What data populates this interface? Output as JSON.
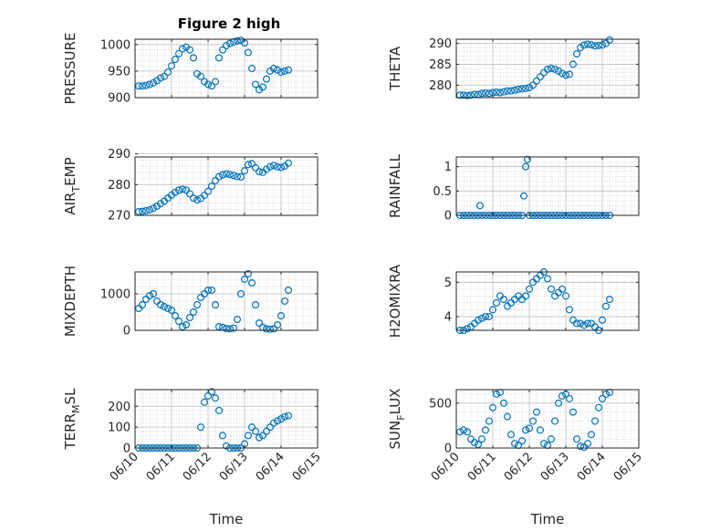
{
  "title": "Figure 2 high",
  "colors": {
    "marker": "#0072BD",
    "axes": "#262626"
  },
  "chart_data": [
    {
      "type": "scatter",
      "ylabel": "PRESSURE",
      "ylim": [
        900,
        1010
      ],
      "yticks": [
        900,
        950,
        1000
      ],
      "xlim": [
        "06/10",
        "06/15"
      ],
      "xticks": [
        "06/10",
        "06/11",
        "06/12",
        "06/13",
        "06/14",
        "06/15"
      ],
      "grid": true,
      "x": [
        0.1,
        0.2,
        0.3,
        0.4,
        0.5,
        0.6,
        0.7,
        0.8,
        0.9,
        1.0,
        1.1,
        1.2,
        1.3,
        1.4,
        1.5,
        1.6,
        1.7,
        1.8,
        1.9,
        2.0,
        2.1,
        2.2,
        2.3,
        2.4,
        2.5,
        2.6,
        2.7,
        2.8,
        2.9,
        3.0,
        3.1,
        3.2,
        3.3,
        3.4,
        3.5,
        3.6,
        3.7,
        3.8,
        3.9,
        4.0,
        4.1,
        4.2
      ],
      "y": [
        922,
        922,
        923,
        925,
        928,
        932,
        937,
        940,
        948,
        960,
        972,
        983,
        992,
        995,
        990,
        975,
        945,
        940,
        930,
        925,
        922,
        930,
        975,
        990,
        998,
        1002,
        1005,
        1007,
        1008,
        1003,
        985,
        955,
        925,
        915,
        920,
        935,
        950,
        955,
        952,
        948,
        950,
        952
      ]
    },
    {
      "type": "scatter",
      "ylabel": "THETA",
      "ylim": [
        277,
        291
      ],
      "yticks": [
        280,
        285,
        290
      ],
      "xlim": [
        "06/10",
        "06/15"
      ],
      "xticks": [
        "06/10",
        "06/11",
        "06/12",
        "06/13",
        "06/14",
        "06/15"
      ],
      "grid": true,
      "x": [
        0.1,
        0.2,
        0.3,
        0.4,
        0.5,
        0.6,
        0.7,
        0.8,
        0.9,
        1.0,
        1.1,
        1.2,
        1.3,
        1.4,
        1.5,
        1.6,
        1.7,
        1.8,
        1.9,
        2.0,
        2.1,
        2.2,
        2.3,
        2.4,
        2.5,
        2.6,
        2.7,
        2.8,
        2.9,
        3.0,
        3.1,
        3.2,
        3.3,
        3.4,
        3.5,
        3.6,
        3.7,
        3.8,
        3.9,
        4.0,
        4.1,
        4.2
      ],
      "y": [
        277.6,
        277.6,
        277.5,
        277.6,
        277.8,
        277.8,
        278.0,
        278.1,
        278.0,
        278.2,
        278.3,
        278.2,
        278.4,
        278.6,
        278.6,
        278.8,
        279.0,
        279.1,
        279.2,
        279.4,
        280.0,
        281.0,
        282.0,
        283.0,
        283.8,
        284.0,
        283.8,
        283.4,
        282.8,
        282.4,
        282.6,
        285.0,
        287.5,
        289.0,
        289.6,
        289.8,
        289.7,
        289.4,
        289.5,
        289.6,
        290.0,
        290.8
      ]
    },
    {
      "type": "scatter",
      "ylabel": "AIR_TEMP",
      "ylim": [
        270,
        289
      ],
      "yticks": [
        270,
        280,
        290
      ],
      "xlim": [
        "06/10",
        "06/15"
      ],
      "xticks": [
        "06/10",
        "06/11",
        "06/12",
        "06/13",
        "06/14",
        "06/15"
      ],
      "grid": true,
      "x": [
        0.1,
        0.2,
        0.3,
        0.4,
        0.5,
        0.6,
        0.7,
        0.8,
        0.9,
        1.0,
        1.1,
        1.2,
        1.3,
        1.4,
        1.5,
        1.6,
        1.7,
        1.8,
        1.9,
        2.0,
        2.1,
        2.2,
        2.3,
        2.4,
        2.5,
        2.6,
        2.7,
        2.8,
        2.9,
        3.0,
        3.1,
        3.2,
        3.3,
        3.4,
        3.5,
        3.6,
        3.7,
        3.8,
        3.9,
        4.0,
        4.1,
        4.2
      ],
      "y": [
        271.2,
        271.3,
        271.5,
        271.8,
        272.3,
        273.0,
        273.8,
        274.6,
        275.6,
        276.6,
        277.5,
        278.2,
        278.5,
        278.2,
        277.0,
        275.6,
        275.0,
        275.5,
        276.5,
        277.8,
        279.5,
        281.3,
        282.6,
        283.2,
        283.5,
        283.3,
        283.0,
        282.6,
        282.5,
        284.5,
        286.5,
        286.8,
        285.5,
        284.2,
        284.0,
        285.0,
        285.8,
        286.2,
        285.8,
        285.6,
        286.0,
        287.0
      ]
    },
    {
      "type": "scatter",
      "ylabel": "RAINFALL",
      "ylim": [
        0,
        1.2
      ],
      "yticks": [
        0,
        0.5,
        1
      ],
      "xlim": [
        "06/10",
        "06/15"
      ],
      "xticks": [
        "06/10",
        "06/11",
        "06/12",
        "06/13",
        "06/14",
        "06/15"
      ],
      "grid": true,
      "x": [
        0.1,
        0.2,
        0.3,
        0.4,
        0.5,
        0.6,
        0.65,
        0.7,
        0.8,
        0.9,
        1.0,
        1.1,
        1.2,
        1.3,
        1.4,
        1.5,
        1.6,
        1.7,
        1.8,
        1.85,
        1.9,
        1.95,
        2.0,
        2.1,
        2.2,
        2.3,
        2.4,
        2.5,
        2.6,
        2.7,
        2.8,
        2.9,
        3.0,
        3.1,
        3.2,
        3.3,
        3.4,
        3.5,
        3.6,
        3.7,
        3.8,
        3.9,
        4.0,
        4.1,
        4.2
      ],
      "y": [
        0,
        0,
        0,
        0,
        0,
        0,
        0.2,
        0,
        0,
        0,
        0,
        0,
        0,
        0,
        0,
        0,
        0,
        0,
        0,
        0.4,
        1.0,
        1.15,
        0,
        0,
        0,
        0,
        0,
        0,
        0,
        0,
        0,
        0,
        0,
        0,
        0,
        0,
        0,
        0,
        0,
        0,
        0,
        0,
        0,
        0,
        0
      ]
    },
    {
      "type": "scatter",
      "ylabel": "MIXDEPTH",
      "ylim": [
        0,
        1600
      ],
      "yticks": [
        0,
        1000
      ],
      "xlim": [
        "06/10",
        "06/15"
      ],
      "xticks": [
        "06/10",
        "06/11",
        "06/12",
        "06/13",
        "06/14",
        "06/15"
      ],
      "grid": true,
      "x": [
        0.1,
        0.2,
        0.3,
        0.4,
        0.5,
        0.6,
        0.7,
        0.8,
        0.9,
        1.0,
        1.1,
        1.2,
        1.3,
        1.4,
        1.5,
        1.6,
        1.7,
        1.8,
        1.9,
        2.0,
        2.1,
        2.2,
        2.3,
        2.4,
        2.5,
        2.6,
        2.7,
        2.8,
        2.9,
        3.0,
        3.1,
        3.2,
        3.3,
        3.4,
        3.5,
        3.6,
        3.7,
        3.8,
        3.9,
        4.0,
        4.1,
        4.2
      ],
      "y": [
        600,
        700,
        850,
        950,
        1000,
        800,
        700,
        650,
        600,
        550,
        400,
        250,
        100,
        150,
        350,
        500,
        700,
        900,
        1000,
        1100,
        1100,
        700,
        100,
        80,
        50,
        40,
        60,
        300,
        1000,
        1400,
        1550,
        1300,
        700,
        200,
        80,
        40,
        30,
        40,
        150,
        400,
        800,
        1100
      ]
    },
    {
      "type": "scatter",
      "ylabel": "H2OMIXRA",
      "ylim": [
        3.6,
        5.3
      ],
      "yticks": [
        4,
        5
      ],
      "xlim": [
        "06/10",
        "06/15"
      ],
      "xticks": [
        "06/10",
        "06/11",
        "06/12",
        "06/13",
        "06/14",
        "06/15"
      ],
      "grid": true,
      "x": [
        0.1,
        0.2,
        0.3,
        0.4,
        0.5,
        0.6,
        0.7,
        0.8,
        0.9,
        1.0,
        1.1,
        1.2,
        1.3,
        1.4,
        1.5,
        1.6,
        1.7,
        1.8,
        1.9,
        2.0,
        2.1,
        2.2,
        2.3,
        2.4,
        2.5,
        2.6,
        2.7,
        2.8,
        2.9,
        3.0,
        3.1,
        3.2,
        3.3,
        3.4,
        3.5,
        3.6,
        3.7,
        3.8,
        3.9,
        4.0,
        4.1,
        4.2
      ],
      "y": [
        3.6,
        3.6,
        3.65,
        3.7,
        3.8,
        3.9,
        3.95,
        4.0,
        4.0,
        4.2,
        4.4,
        4.6,
        4.5,
        4.3,
        4.4,
        4.5,
        4.6,
        4.5,
        4.6,
        4.8,
        5.0,
        5.1,
        5.2,
        5.3,
        5.1,
        4.8,
        4.6,
        4.7,
        4.8,
        4.6,
        4.2,
        3.9,
        3.8,
        3.8,
        3.75,
        3.8,
        3.8,
        3.7,
        3.6,
        3.9,
        4.3,
        4.5
      ]
    },
    {
      "type": "scatter",
      "ylabel": "TERR_MSL",
      "ylim": [
        0,
        280
      ],
      "yticks": [
        0,
        100,
        200
      ],
      "xlim": [
        "06/10",
        "06/15"
      ],
      "xticks": [
        "06/10",
        "06/11",
        "06/12",
        "06/13",
        "06/14",
        "06/15"
      ],
      "grid": true,
      "x": [
        0.1,
        0.2,
        0.3,
        0.4,
        0.5,
        0.6,
        0.7,
        0.8,
        0.9,
        1.0,
        1.1,
        1.2,
        1.3,
        1.4,
        1.5,
        1.6,
        1.7,
        1.8,
        1.9,
        2.0,
        2.1,
        2.2,
        2.3,
        2.4,
        2.5,
        2.6,
        2.7,
        2.8,
        2.9,
        3.0,
        3.1,
        3.2,
        3.3,
        3.4,
        3.5,
        3.6,
        3.7,
        3.8,
        3.9,
        4.0,
        4.1,
        4.2
      ],
      "y": [
        0,
        0,
        0,
        0,
        0,
        0,
        0,
        0,
        0,
        0,
        0,
        0,
        0,
        0,
        0,
        0,
        0,
        100,
        220,
        250,
        270,
        240,
        180,
        60,
        10,
        0,
        0,
        0,
        0,
        20,
        60,
        100,
        80,
        50,
        60,
        80,
        100,
        120,
        130,
        140,
        150,
        155
      ]
    },
    {
      "type": "scatter",
      "ylabel": "SUN_FLUX",
      "ylim": [
        0,
        650
      ],
      "yticks": [
        0,
        500
      ],
      "xlim": [
        "06/10",
        "06/15"
      ],
      "xticks": [
        "06/10",
        "06/11",
        "06/12",
        "06/13",
        "06/14",
        "06/15"
      ],
      "grid": true,
      "x": [
        0.1,
        0.2,
        0.3,
        0.4,
        0.5,
        0.6,
        0.7,
        0.8,
        0.9,
        1.0,
        1.1,
        1.2,
        1.3,
        1.4,
        1.5,
        1.6,
        1.7,
        1.8,
        1.9,
        2.0,
        2.1,
        2.2,
        2.3,
        2.4,
        2.5,
        2.6,
        2.7,
        2.8,
        2.9,
        3.0,
        3.1,
        3.2,
        3.3,
        3.4,
        3.5,
        3.6,
        3.7,
        3.8,
        3.9,
        4.0,
        4.1,
        4.2
      ],
      "y": [
        180,
        200,
        180,
        100,
        60,
        40,
        100,
        200,
        300,
        450,
        600,
        620,
        500,
        350,
        150,
        50,
        30,
        80,
        200,
        220,
        300,
        400,
        200,
        50,
        30,
        100,
        300,
        500,
        580,
        600,
        550,
        400,
        100,
        20,
        10,
        50,
        150,
        300,
        450,
        550,
        600,
        620
      ]
    }
  ],
  "panels": [
    {
      "ylabel_main": "PRESSURE",
      "ylabel_sub": "",
      "ylabel_tail": "",
      "xlabel": ""
    },
    {
      "ylabel_main": "THETA",
      "ylabel_sub": "",
      "ylabel_tail": "",
      "xlabel": ""
    },
    {
      "ylabel_main": "AIR",
      "ylabel_sub": "T",
      "ylabel_tail": "EMP",
      "xlabel": ""
    },
    {
      "ylabel_main": "RAINFALL",
      "ylabel_sub": "",
      "ylabel_tail": "",
      "xlabel": ""
    },
    {
      "ylabel_main": "MIXDEPTH",
      "ylabel_sub": "",
      "ylabel_tail": "",
      "xlabel": ""
    },
    {
      "ylabel_main": "H2OMIXRA",
      "ylabel_sub": "",
      "ylabel_tail": "",
      "xlabel": ""
    },
    {
      "ylabel_main": "TERR",
      "ylabel_sub": "M",
      "ylabel_tail": "SL",
      "xlabel": "Time"
    },
    {
      "ylabel_main": "SUN",
      "ylabel_sub": "F",
      "ylabel_tail": "LUX",
      "xlabel": "Time"
    }
  ]
}
